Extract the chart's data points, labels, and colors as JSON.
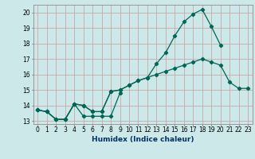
{
  "xlabel": "Humidex (Indice chaleur)",
  "bg_color": "#cce8e8",
  "grid_color": "#c8a8a8",
  "line_color": "#006655",
  "xlim": [
    -0.5,
    23.5
  ],
  "ylim": [
    12.8,
    20.5
  ],
  "xticks": [
    0,
    1,
    2,
    3,
    4,
    5,
    6,
    7,
    8,
    9,
    10,
    11,
    12,
    13,
    14,
    15,
    16,
    17,
    18,
    19,
    20,
    21,
    22,
    23
  ],
  "yticks": [
    13,
    14,
    15,
    16,
    17,
    18,
    19,
    20
  ],
  "series": [
    {
      "x": [
        0,
        1,
        2,
        3,
        4,
        5,
        6,
        7,
        8,
        9,
        10,
        11,
        12,
        13,
        14,
        15,
        16,
        17,
        18,
        19,
        20
      ],
      "y": [
        13.7,
        13.6,
        13.1,
        13.1,
        14.1,
        14.0,
        13.6,
        13.6,
        14.9,
        15.0,
        15.3,
        15.6,
        15.8,
        16.7,
        17.4,
        18.5,
        19.4,
        19.9,
        20.2,
        19.1,
        17.9
      ]
    },
    {
      "x": [
        0,
        1,
        2,
        3,
        4,
        5,
        6,
        7,
        8,
        9
      ],
      "y": [
        13.7,
        13.6,
        13.1,
        13.1,
        14.1,
        13.3,
        13.3,
        13.3,
        13.3,
        14.8
      ]
    },
    {
      "x": [
        0,
        1,
        2,
        3,
        4,
        5,
        6,
        7,
        8,
        9,
        10,
        11,
        12,
        13,
        14,
        15,
        16,
        17,
        18,
        19,
        20,
        21,
        22,
        23
      ],
      "y": [
        13.7,
        13.6,
        13.1,
        13.1,
        14.1,
        14.0,
        13.6,
        13.6,
        14.9,
        15.0,
        15.3,
        15.6,
        15.8,
        16.0,
        16.2,
        16.4,
        16.6,
        16.8,
        17.0,
        16.8,
        16.6,
        15.5,
        15.1,
        15.1
      ]
    }
  ]
}
